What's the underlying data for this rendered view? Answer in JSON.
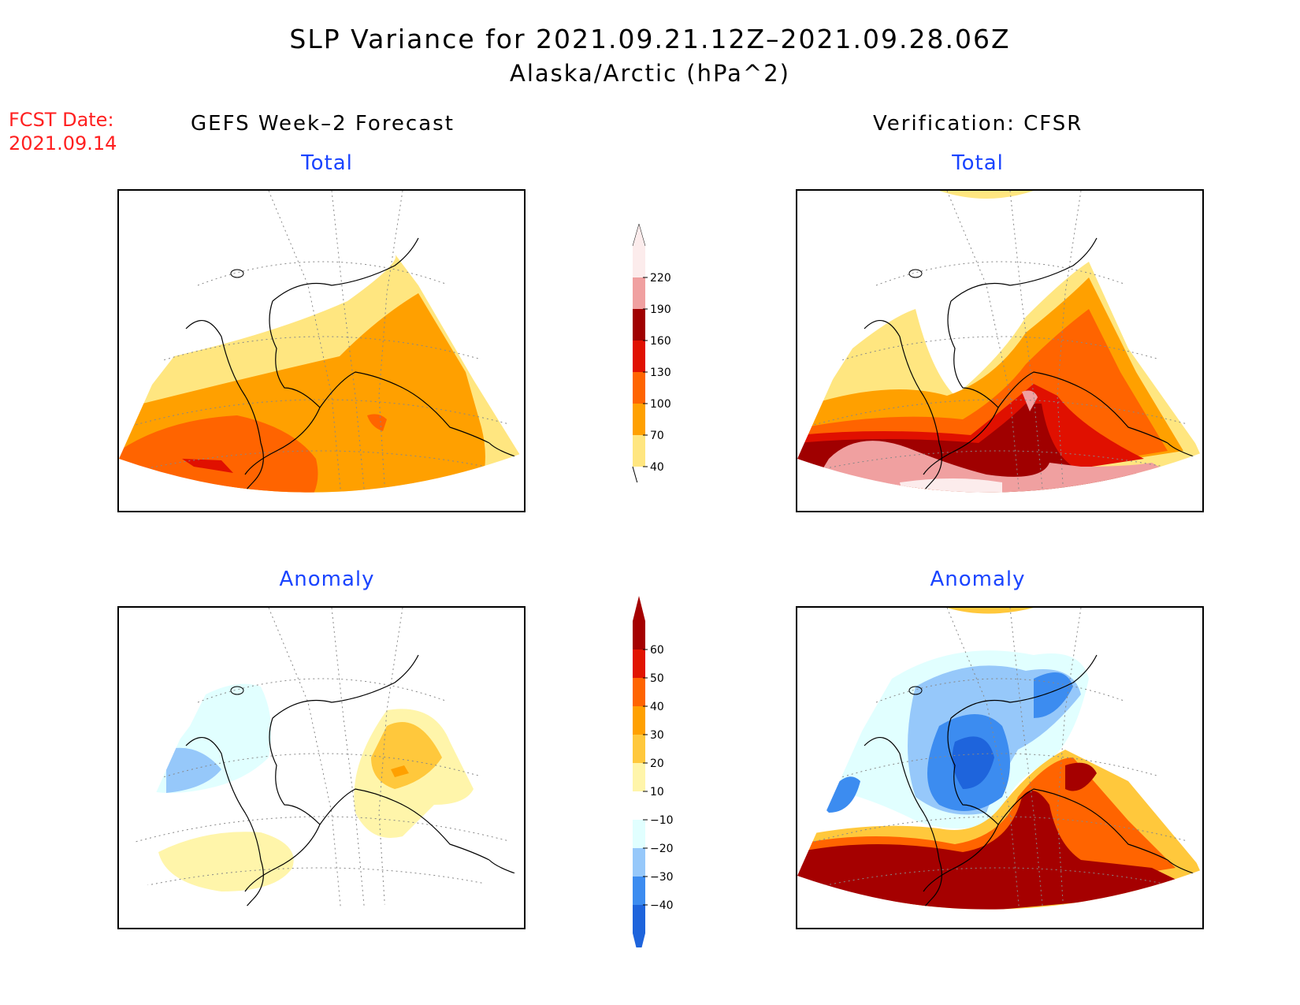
{
  "title": {
    "line1": "SLP Variance for 2021.09.21.12Z–2021.09.28.06Z",
    "line2": "Alaska/Arctic (hPa^2)"
  },
  "fcst": {
    "label": "FCST Date:",
    "value": "2021.09.14"
  },
  "columns": {
    "left": "GEFS Week–2 Forecast",
    "right": "Verification: CFSR"
  },
  "panels": {
    "forecast_total": {
      "title": "Total"
    },
    "verification_total": {
      "title": "Total"
    },
    "forecast_anomaly": {
      "title": "Anomaly"
    },
    "verification_anomaly": {
      "title": "Anomaly"
    }
  },
  "colorbars": {
    "total": {
      "labels": [
        "40",
        "70",
        "100",
        "130",
        "160",
        "190",
        "220"
      ],
      "colors": [
        "#ffe680",
        "#ffa000",
        "#ff6400",
        "#e01000",
        "#a00000",
        "#f0a0a0",
        "#fcecec"
      ]
    },
    "anomaly": {
      "labels": [
        "−40",
        "−30",
        "−20",
        "−10",
        "10",
        "20",
        "30",
        "40",
        "50",
        "60"
      ],
      "colors": [
        "#1e64dc",
        "#3c8cf0",
        "#96c8fa",
        "#e1ffff",
        "#ffffff",
        "#fff5aa",
        "#ffc83c",
        "#ffa000",
        "#ff6400",
        "#e11400",
        "#a50000"
      ]
    }
  },
  "map_colors": {
    "c40": "#ffe680",
    "c70": "#ffa000",
    "c100": "#ff6400",
    "c130": "#e01000",
    "c160": "#a00000",
    "c190": "#f0a0a0",
    "c220": "#fcecec",
    "n40": "#1e64dc",
    "n30": "#3c8cf0",
    "n20": "#96c8fa",
    "n10": "#e1ffff",
    "p10": "#fff5aa",
    "p20": "#ffc83c",
    "p30": "#ffa000",
    "p40": "#ff6400",
    "p50": "#e11400",
    "p60": "#a50000"
  }
}
